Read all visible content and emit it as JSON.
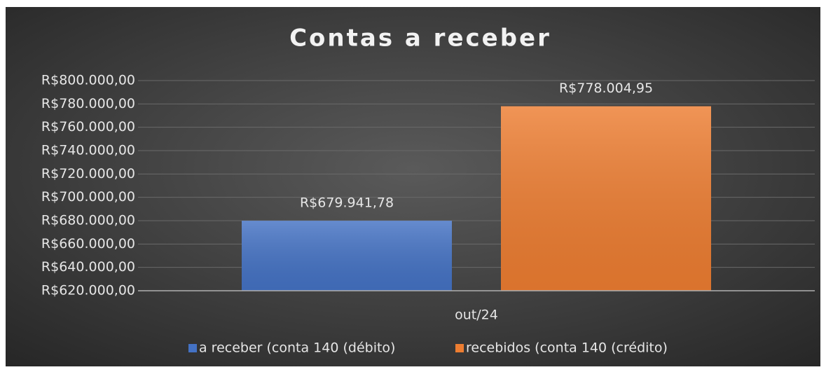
{
  "chart_data": {
    "type": "bar",
    "title": "Contas a receber",
    "categories": [
      "out/24"
    ],
    "series": [
      {
        "name": "a receber  (conta 140 (débito)",
        "color": "#4472c4",
        "values": [
          679941.78
        ],
        "value_labels": [
          "R$679.941,78"
        ]
      },
      {
        "name": "recebidos (conta 140 (crédito)",
        "color": "#ed7d31",
        "values": [
          778004.95
        ],
        "value_labels": [
          "R$778.004,95"
        ]
      }
    ],
    "ylim": [
      620000,
      800000
    ],
    "yticks": [
      {
        "value": 620000,
        "label": "R$620.000,00"
      },
      {
        "value": 640000,
        "label": "R$640.000,00"
      },
      {
        "value": 660000,
        "label": "R$660.000,00"
      },
      {
        "value": 680000,
        "label": "R$680.000,00"
      },
      {
        "value": 700000,
        "label": "R$700.000,00"
      },
      {
        "value": 720000,
        "label": "R$720.000,00"
      },
      {
        "value": 740000,
        "label": "R$740.000,00"
      },
      {
        "value": 760000,
        "label": "R$760.000,00"
      },
      {
        "value": 780000,
        "label": "R$780.000,00"
      },
      {
        "value": 800000,
        "label": "R$800.000,00"
      }
    ],
    "grid": true,
    "legend": "bottom"
  }
}
